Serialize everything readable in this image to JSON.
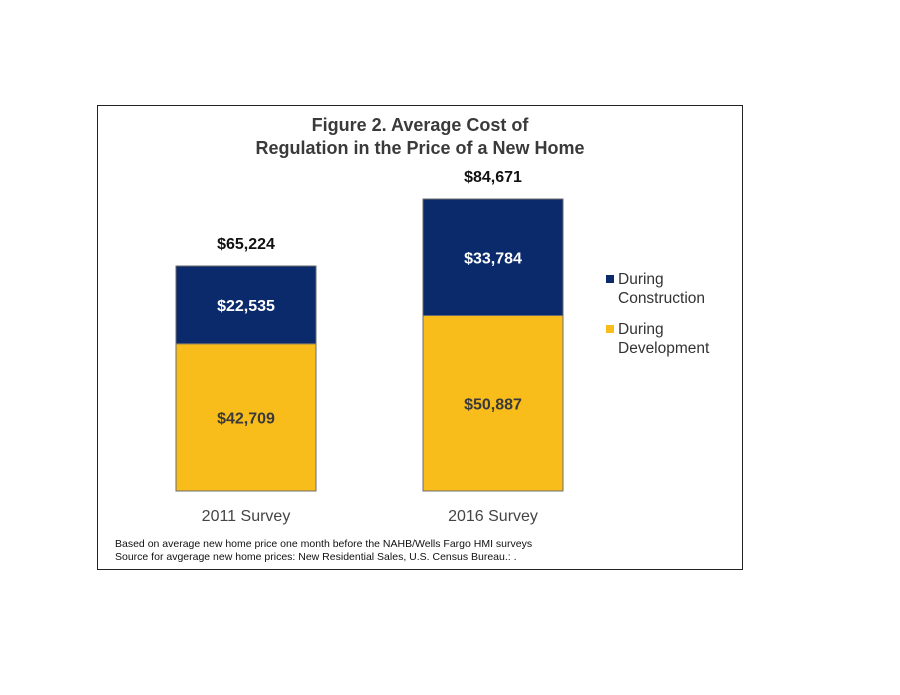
{
  "chart_data": {
    "type": "bar",
    "stacked": true,
    "title": [
      "Figure 2.  Average Cost of",
      "Regulation in the Price of a New Home"
    ],
    "categories": [
      "2011 Survey",
      "2016 Survey"
    ],
    "series": [
      {
        "name": "During Development",
        "legend_lines": [
          "During",
          "Development"
        ],
        "color": "#F8BC1B",
        "values": [
          42709,
          50887
        ],
        "labels": [
          "$42,709",
          "$50,887"
        ]
      },
      {
        "name": "During Construction",
        "legend_lines": [
          "During",
          "Construction"
        ],
        "color": "#0B2A6B",
        "values": [
          22535,
          33784
        ],
        "labels": [
          "$22,535",
          "$33,784"
        ]
      }
    ],
    "totals": [
      65224,
      84671
    ],
    "total_labels": [
      "$65,224",
      "$84,671"
    ],
    "legend_order": [
      "During Construction",
      "During Development"
    ],
    "legend_position": "right",
    "grid": false,
    "ylim": [
      0,
      84671
    ]
  },
  "notes": [
    "Based on average  new home price one month before the NAHB/Wells Fargo HMI surveys",
    "Source for avgerage  new home prices: New Residential Sales, U.S. Census Bureau.: ."
  ]
}
